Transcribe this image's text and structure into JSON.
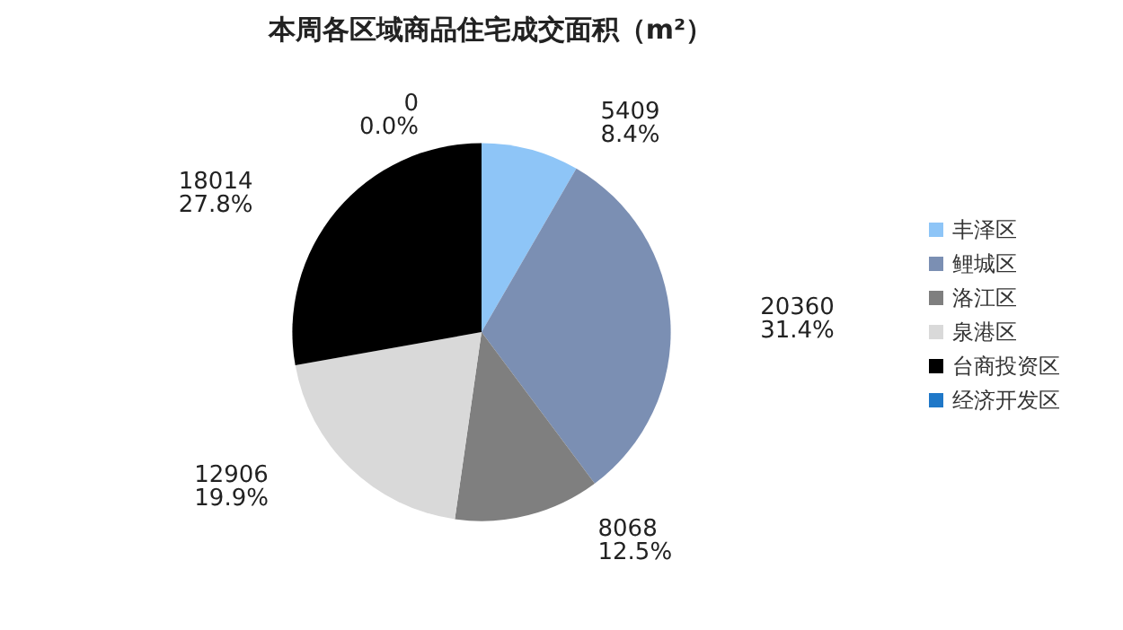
{
  "chart_data": {
    "type": "pie",
    "title": "本周各区域商品住宅成交面积（m²）",
    "categories": [
      "丰泽区",
      "鲤城区",
      "洛江区",
      "泉港区",
      "台商投资区",
      "经济开发区"
    ],
    "values": [
      5409,
      20360,
      8068,
      12906,
      18014,
      0
    ],
    "colors": [
      "#8ec5f7",
      "#7b8fb3",
      "#7f7f7f",
      "#d9d9d9",
      "#000000",
      "#1f78c8"
    ],
    "value_labels": [
      "5409\n8.4%",
      "20360\n31.4%",
      "8068\n12.5%",
      "12906\n19.9%",
      "18014\n27.8%",
      "0\n0.0%"
    ],
    "legend": "right"
  }
}
